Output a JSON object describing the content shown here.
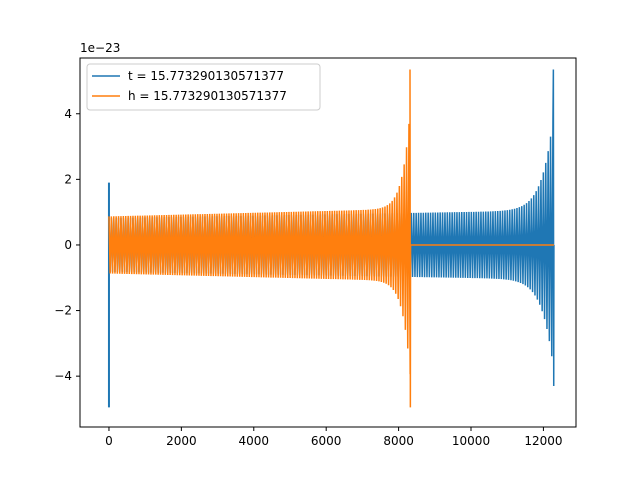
{
  "chart_data": {
    "type": "line",
    "title": "",
    "xlabel": "",
    "ylabel": "",
    "y_offset_label": "1e−23",
    "xlim": [
      -800,
      12900
    ],
    "ylim": [
      -5.55,
      5.7
    ],
    "x_ticks": [
      0,
      2000,
      4000,
      6000,
      8000,
      10000,
      12000
    ],
    "x_tick_labels": [
      "0",
      "2000",
      "4000",
      "6000",
      "8000",
      "10000",
      "12000"
    ],
    "y_ticks": [
      -4,
      -2,
      0,
      2,
      4
    ],
    "y_tick_labels": [
      "−4",
      "−2",
      "0",
      "2",
      "4"
    ],
    "grid": false,
    "legend_position": "top-left",
    "series": [
      {
        "name": "t = 15.773290130571377",
        "color": "#1f77b4",
        "kind": "chirp",
        "x_start": 0,
        "x_end": 12290,
        "start_spike": [
          1.9,
          -4.95
        ],
        "base_amplitude": 0.82,
        "amplitude_at_x_end": [
          1.05,
          4.1
        ],
        "peak_max": 5.35,
        "peak_min": -4.3
      },
      {
        "name": "h = 15.773290130571377",
        "color": "#ff7f0e",
        "kind": "chirp",
        "x_start": 0,
        "x_end": 8330,
        "tail_x_end": 12290,
        "tail_value": 0,
        "base_amplitude": 0.87,
        "amplitude_at_x_end": [
          1.1,
          4.3
        ],
        "peak_max": 5.35,
        "peak_min": -4.95
      }
    ]
  }
}
